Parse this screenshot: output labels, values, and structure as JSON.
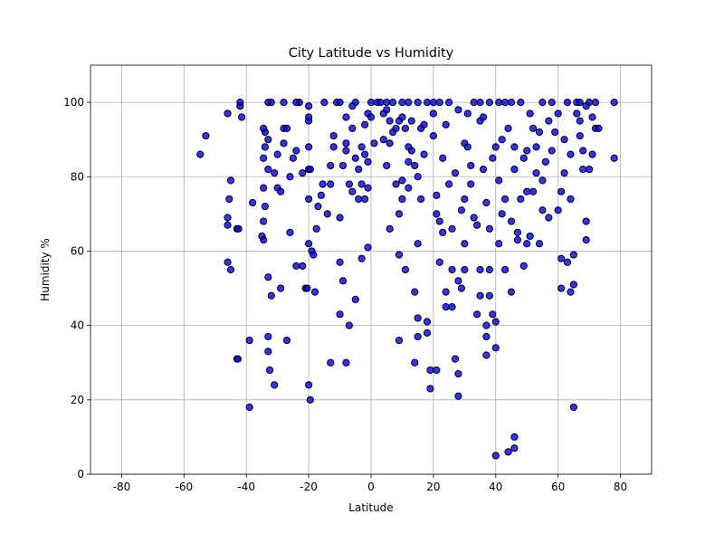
{
  "chart_data": {
    "type": "scatter",
    "title": "City Latitude vs Humidity",
    "x_label": "Latitude",
    "y_label": "Humidity %",
    "color": "#0000ff",
    "edgecolor": "#000000",
    "grid": true,
    "xlim": [
      -90,
      90
    ],
    "ylim": [
      0,
      110
    ],
    "xticks": [
      -80,
      -60,
      -40,
      -20,
      0,
      20,
      40,
      60,
      80
    ],
    "yticks": [
      0,
      20,
      40,
      60,
      80,
      100
    ],
    "x": [
      -54.8,
      -53,
      -46,
      -42,
      -42,
      -41.5,
      -45,
      -45.5,
      -46,
      -46,
      -46,
      -45,
      -43,
      -42.5,
      -43,
      -42.7,
      -38,
      -39,
      -39,
      -35,
      -34.5,
      -34.5,
      -34.5,
      -34,
      -34.5,
      -34,
      -34,
      -34.5,
      -33,
      -33,
      -33,
      -33,
      -33,
      -32.5,
      -32,
      -31,
      -33,
      -32,
      -31,
      -30,
      -30,
      -29,
      -29,
      -28,
      -28,
      -27,
      -27,
      -26,
      -26,
      -25,
      -24,
      -24,
      -22,
      -22,
      -21,
      -20.5,
      -20,
      -20,
      -20,
      -19.5,
      -20,
      -20,
      -20,
      -20,
      -20,
      -19.5,
      -19,
      -18.5,
      -18,
      -17.5,
      -17,
      -16,
      -15.5,
      -15,
      -23,
      -24,
      -14,
      -13,
      -13,
      -13,
      -12,
      -12,
      -11,
      -10,
      -10,
      -10,
      -10,
      -9,
      -9,
      -8,
      -8,
      -7,
      -7,
      -8,
      -6,
      -6,
      -6,
      -5,
      -5,
      -4,
      -4,
      -3,
      -3,
      -3,
      -2,
      -2,
      -2,
      -1,
      -1,
      -1,
      0,
      -1,
      0,
      1,
      2,
      3,
      4,
      4,
      5,
      5,
      6,
      6,
      6,
      7,
      7,
      8,
      8,
      9,
      9,
      9,
      9,
      10,
      10,
      10,
      11,
      11,
      12,
      12,
      12,
      13,
      13,
      14,
      14,
      14,
      15,
      15,
      15,
      15,
      16,
      16,
      17,
      17,
      18,
      18,
      19,
      19,
      20,
      20,
      20,
      21,
      21,
      21,
      22,
      22,
      23,
      23,
      24,
      24,
      24,
      25,
      26,
      26,
      26,
      27,
      27,
      28,
      28,
      28,
      28,
      29,
      29,
      30,
      30,
      30,
      30,
      31,
      31,
      32,
      32,
      33,
      33,
      34,
      34,
      35,
      35,
      35,
      36,
      36,
      37,
      37,
      37,
      37,
      38,
      38,
      38,
      39,
      39,
      40,
      40,
      40,
      40,
      41,
      41,
      41,
      42,
      42,
      43,
      43,
      44,
      44,
      45,
      45,
      46,
      46,
      46,
      46,
      47,
      47,
      48,
      48,
      49,
      49,
      50,
      50,
      50,
      51,
      51,
      52,
      53,
      53,
      54,
      54,
      55,
      55,
      56,
      57,
      57,
      58,
      59,
      60,
      60,
      61,
      61,
      61,
      62,
      62,
      63,
      64,
      64,
      64,
      65,
      65,
      65,
      66,
      66,
      67,
      67,
      68,
      68,
      69,
      69,
      70,
      70,
      71,
      71,
      72,
      72,
      78,
      78,
      73,
      69,
      67,
      63,
      58,
      55,
      52,
      45,
      43,
      38,
      35,
      25,
      22,
      18,
      15,
      12,
      10,
      5,
      -5,
      -8,
      -28
    ],
    "values": [
      86,
      91,
      97,
      99,
      100,
      96,
      79,
      74,
      69,
      67,
      57,
      55,
      66,
      66,
      31,
      31,
      73,
      36,
      18,
      64,
      63,
      68,
      77,
      72,
      85,
      88,
      92,
      93,
      90,
      82,
      53,
      37,
      33,
      28,
      48,
      24,
      100,
      100,
      81,
      86,
      77,
      76,
      50,
      89,
      93,
      93,
      36,
      80,
      65,
      85,
      56,
      87,
      56,
      81,
      50,
      50,
      62,
      74,
      82,
      82,
      88,
      95,
      96,
      99,
      24,
      20,
      60,
      59,
      49,
      66,
      72,
      75,
      78,
      100,
      100,
      100,
      70,
      30,
      78,
      83,
      88,
      91,
      100,
      100,
      69,
      43,
      57,
      52,
      83,
      89,
      87,
      78,
      40,
      30,
      76,
      93,
      99,
      85,
      47,
      74,
      82,
      88,
      58,
      78,
      74,
      86,
      94,
      84,
      77,
      97,
      96,
      61,
      100,
      89,
      100,
      100,
      97,
      90,
      98,
      83,
      95,
      66,
      89,
      100,
      92,
      93,
      78,
      95,
      59,
      70,
      36,
      74,
      79,
      100,
      55,
      93,
      88,
      84,
      77,
      95,
      87,
      83,
      49,
      30,
      37,
      42,
      62,
      80,
      93,
      74,
      94,
      86,
      41,
      38,
      23,
      28,
      91,
      97,
      100,
      28,
      75,
      70,
      57,
      68,
      85,
      65,
      49,
      45,
      94,
      78,
      66,
      55,
      45,
      81,
      31,
      21,
      27,
      52,
      98,
      71,
      50,
      74,
      89,
      62,
      55,
      97,
      88,
      83,
      78,
      100,
      69,
      43,
      67,
      48,
      55,
      95,
      82,
      96,
      40,
      32,
      37,
      73,
      48,
      55,
      66,
      43,
      85,
      88,
      41,
      34,
      5,
      62,
      79,
      100,
      70,
      90,
      55,
      74,
      6,
      93,
      49,
      68,
      10,
      7,
      82,
      88,
      65,
      63,
      74,
      100,
      56,
      85,
      76,
      87,
      62,
      64,
      97,
      76,
      88,
      81,
      62,
      92,
      79,
      71,
      84,
      69,
      95,
      87,
      92,
      97,
      71,
      50,
      58,
      76,
      81,
      90,
      57,
      74,
      86,
      49,
      18,
      51,
      59,
      100,
      97,
      95,
      91,
      87,
      82,
      63,
      68,
      82,
      100,
      96,
      86,
      93,
      100,
      85,
      100,
      93,
      99,
      100,
      100,
      100,
      100,
      93,
      100,
      100,
      100,
      100,
      100,
      100,
      100,
      100,
      100,
      96,
      100,
      100,
      96,
      100
    ]
  }
}
